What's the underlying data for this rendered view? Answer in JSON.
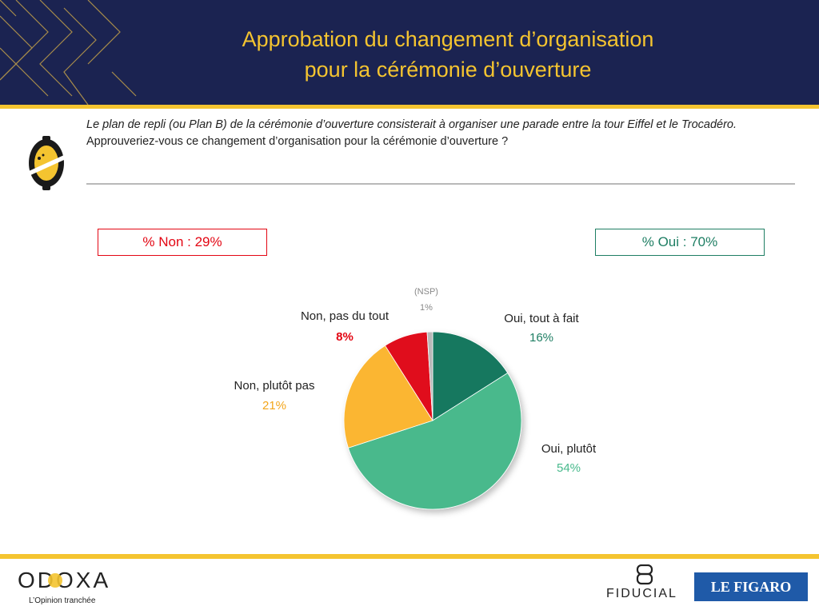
{
  "title": {
    "line1": "Approbation du changement d’organisation",
    "line2": "pour la cérémonie d’ouverture"
  },
  "question": {
    "lead": "Le plan de repli (ou Plan B) de la cérémonie d’ouverture consisterait à organiser une parade entre la tour Eiffel et le Trocadéro.",
    "ask": "Approuveriez-vous ce changement d’organisation pour la cérémonie d’ouverture ?"
  },
  "summary": {
    "non": "% Non : 29%",
    "oui": "% Oui : 70%"
  },
  "colors": {
    "header_bg": "#1b2351",
    "accent_yellow": "#f4c430",
    "non_red": "#e30613",
    "oui_dark_green": "#1e7e63"
  },
  "chart_data": {
    "type": "pie",
    "start_angle": "12 o'clock",
    "direction": "clockwise",
    "slices": [
      {
        "label": "Oui, tout à fait",
        "value": 16,
        "value_label": "16%",
        "color": "#12785f"
      },
      {
        "label": "Oui, plutôt",
        "value": 54,
        "value_label": "54%",
        "color": "#48b98c"
      },
      {
        "label": "Non, plutôt pas",
        "value": 21,
        "value_label": "21%",
        "color": "#fbb630"
      },
      {
        "label": "Non, pas du tout",
        "value": 8,
        "value_label": "8%",
        "color": "#e0101f"
      },
      {
        "label": "(NSP)",
        "value": 1,
        "value_label": "1%",
        "color": "#b8b8b8"
      }
    ]
  },
  "footer": {
    "odoxa": "ODOXA",
    "odoxa_tagline": "L’Opinion tranchée",
    "fiducial": "FIDUCIAL",
    "figaro": "LE FIGARO"
  }
}
